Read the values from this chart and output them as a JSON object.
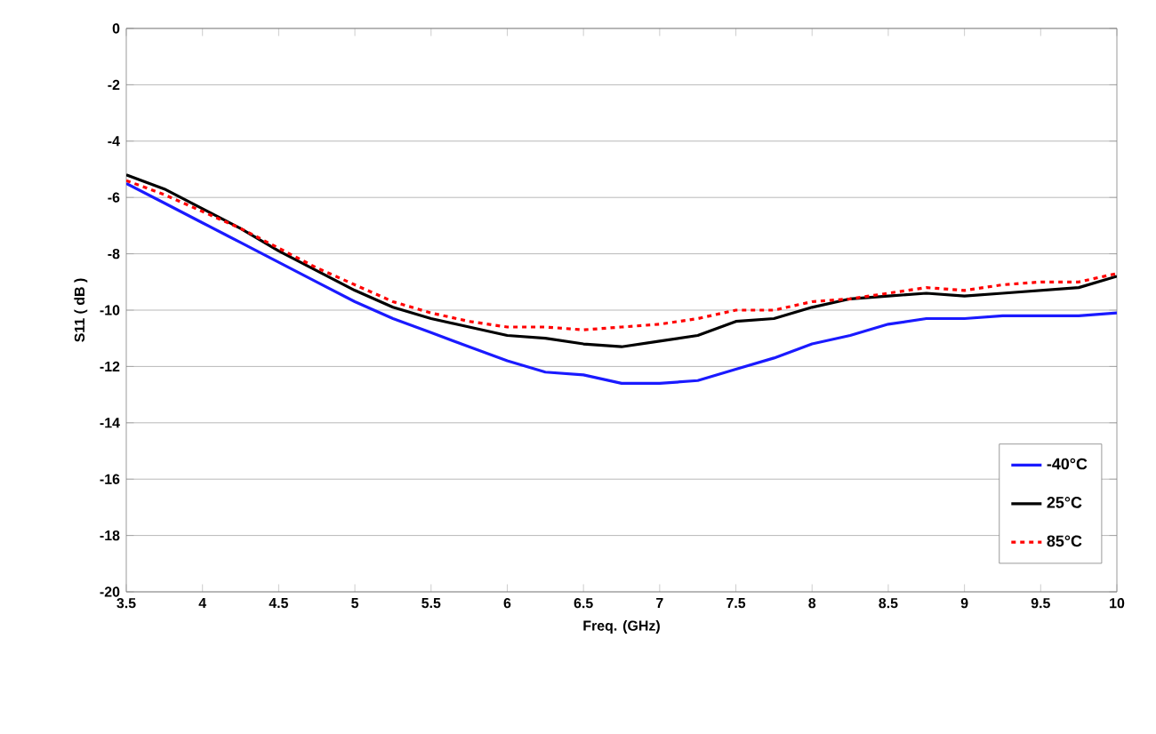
{
  "chart_data": {
    "type": "line",
    "xlabel": "Freq. (GHz)",
    "ylabel": "S11 ( dB )",
    "x": [
      3.5,
      3.75,
      4,
      4.25,
      4.5,
      4.75,
      5,
      5.25,
      5.5,
      5.75,
      6,
      6.25,
      6.5,
      6.75,
      7,
      7.25,
      7.5,
      7.75,
      8,
      8.25,
      8.5,
      8.75,
      9,
      9.25,
      9.5,
      9.75,
      10
    ],
    "series": [
      {
        "name": "-40°C",
        "color": "#1a1aff",
        "line_style": "solid",
        "values": [
          -5.5,
          -6.2,
          -6.9,
          -7.6,
          -8.3,
          -9.0,
          -9.7,
          -10.3,
          -10.8,
          -11.3,
          -11.8,
          -12.2,
          -12.3,
          -12.6,
          -12.6,
          -12.5,
          -12.1,
          -11.7,
          -11.2,
          -10.9,
          -10.5,
          -10.3,
          -10.3,
          -10.2,
          -10.2,
          -10.2,
          -10.1
        ]
      },
      {
        "name": "25°C",
        "color": "#000000",
        "line_style": "solid",
        "values": [
          -5.2,
          -5.7,
          -6.4,
          -7.1,
          -7.9,
          -8.6,
          -9.3,
          -9.9,
          -10.3,
          -10.6,
          -10.9,
          -11.0,
          -11.2,
          -11.3,
          -11.1,
          -10.9,
          -10.4,
          -10.3,
          -9.9,
          -9.6,
          -9.5,
          -9.4,
          -9.5,
          -9.4,
          -9.3,
          -9.2,
          -8.8
        ]
      },
      {
        "name": "85°C",
        "color": "#ff0000",
        "line_style": "dotted",
        "values": [
          -5.4,
          -5.9,
          -6.5,
          -7.1,
          -7.8,
          -8.5,
          -9.1,
          -9.7,
          -10.1,
          -10.4,
          -10.6,
          -10.6,
          -10.7,
          -10.6,
          -10.5,
          -10.3,
          -10.0,
          -10.0,
          -9.7,
          -9.6,
          -9.4,
          -9.2,
          -9.3,
          -9.1,
          -9.0,
          -9.0,
          -8.7
        ]
      }
    ],
    "xlim": [
      3.5,
      10
    ],
    "xticks": [
      3.5,
      4,
      4.5,
      5,
      5.5,
      6,
      6.5,
      7,
      7.5,
      8,
      8.5,
      9,
      9.5,
      10
    ],
    "ylim": [
      -20,
      0
    ],
    "yticks": [
      -20,
      -18,
      -16,
      -14,
      -12,
      -10,
      -8,
      -6,
      -4,
      -2,
      0
    ],
    "grid": "y",
    "legend": "bottom right",
    "marker": "none"
  }
}
